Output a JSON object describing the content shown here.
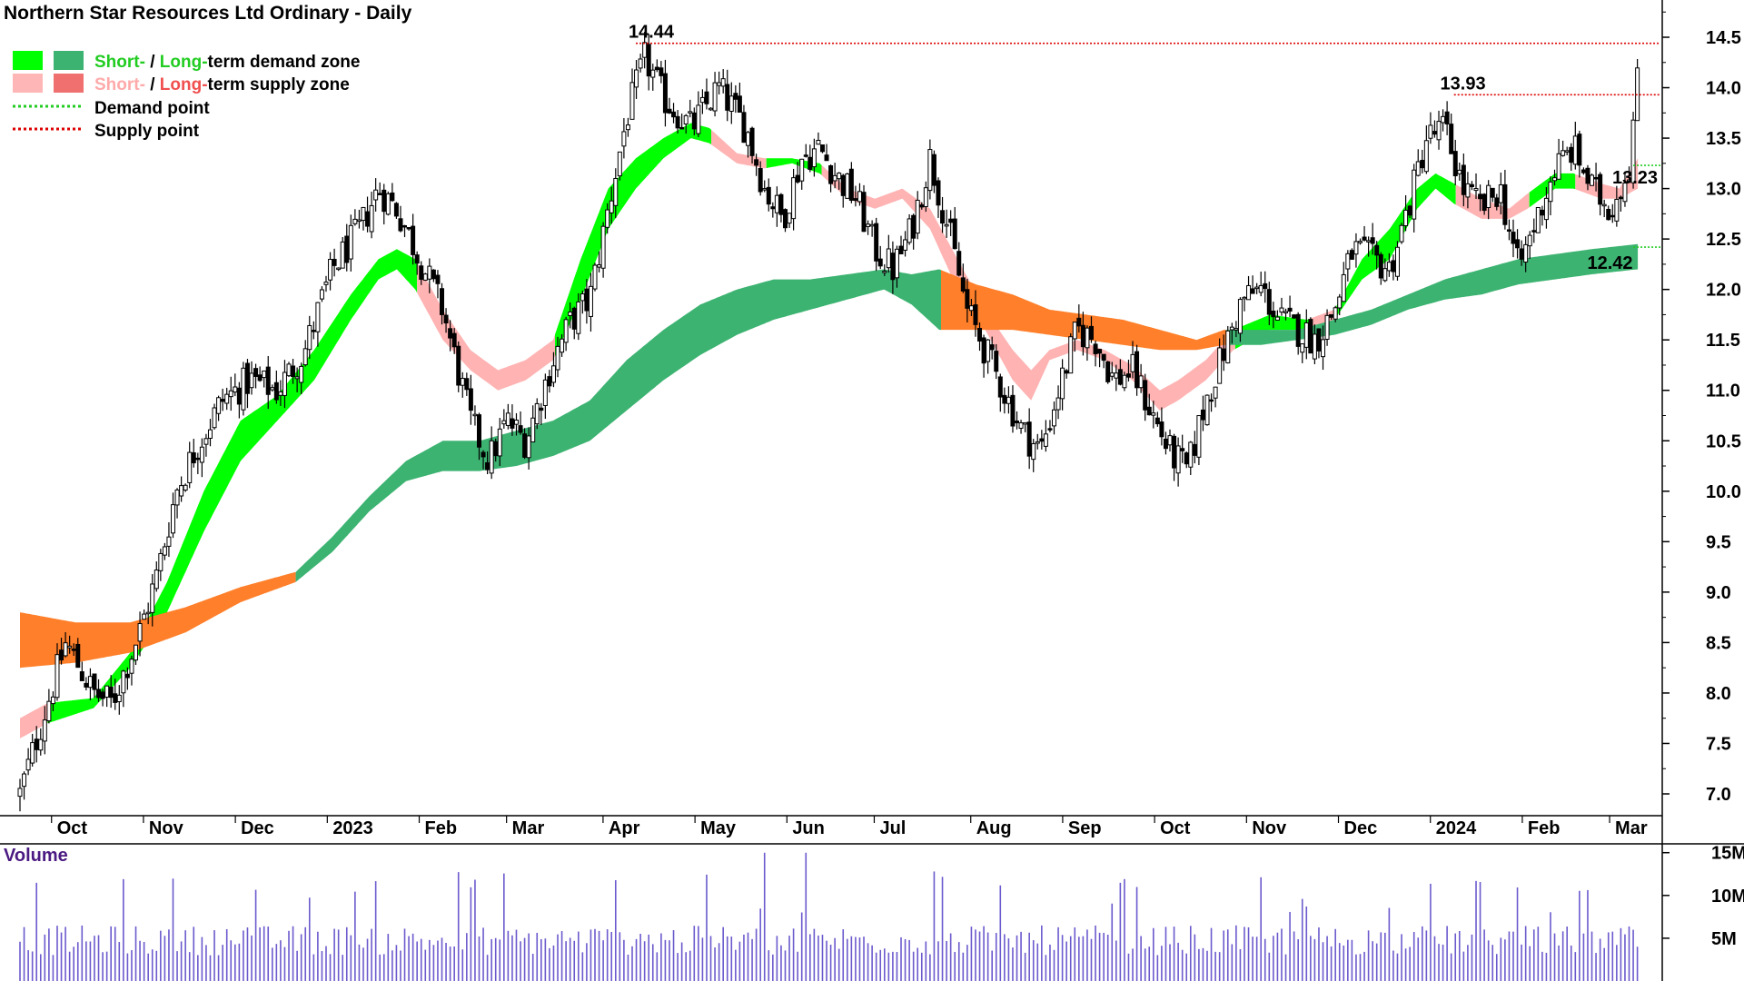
{
  "chart_data": {
    "type": "candlestick",
    "title": "Northern Star Resources Ltd Ordinary - Daily",
    "legend": [
      {
        "swatches": [
          "#00ff00",
          "#3cb371"
        ],
        "label_parts": [
          {
            "text": "Short-",
            "color": "#22cc22"
          },
          {
            "text": " / ",
            "color": "#000000"
          },
          {
            "text": "Long-",
            "color": "#22cc22"
          },
          {
            "text": "term demand zone",
            "color": "#000000"
          }
        ],
        "line": false
      },
      {
        "swatches": [
          "#ffb6b6",
          "#f07070"
        ],
        "label_parts": [
          {
            "text": "Short-",
            "color": "#ffaaaa"
          },
          {
            "text": " / ",
            "color": "#000000"
          },
          {
            "text": "Long-",
            "color": "#f05050"
          },
          {
            "text": "term supply zone",
            "color": "#000000"
          }
        ],
        "line": false
      },
      {
        "line_color": "#22cc22",
        "label_parts": [
          {
            "text": "Demand point",
            "color": "#000000"
          }
        ],
        "line": true
      },
      {
        "line_color": "#dd0000",
        "label_parts": [
          {
            "text": "Supply point",
            "color": "#000000"
          }
        ],
        "line": true
      }
    ],
    "y_axis": {
      "min": 6.8,
      "max": 14.8,
      "ticks": [
        "7.0",
        "7.5",
        "8.0",
        "8.5",
        "9.0",
        "9.5",
        "10.0",
        "10.5",
        "11.0",
        "11.5",
        "12.0",
        "12.5",
        "13.0",
        "13.5",
        "14.0",
        "14.5"
      ]
    },
    "x_axis": {
      "labels": [
        {
          "text": "Oct",
          "month_index": 0.6
        },
        {
          "text": "Nov",
          "month_index": 1.6
        },
        {
          "text": "Dec",
          "month_index": 2.6
        },
        {
          "text": "2023",
          "month_index": 3.6
        },
        {
          "text": "Feb",
          "month_index": 4.6
        },
        {
          "text": "Mar",
          "month_index": 5.55
        },
        {
          "text": "Apr",
          "month_index": 6.6
        },
        {
          "text": "May",
          "month_index": 7.6
        },
        {
          "text": "Jun",
          "month_index": 8.6
        },
        {
          "text": "Jul",
          "month_index": 9.55
        },
        {
          "text": "Aug",
          "month_index": 10.6
        },
        {
          "text": "Sep",
          "month_index": 11.6
        },
        {
          "text": "Oct",
          "month_index": 12.6
        },
        {
          "text": "Nov",
          "month_index": 13.6
        },
        {
          "text": "Dec",
          "month_index": 14.6
        },
        {
          "text": "2024",
          "month_index": 15.6
        },
        {
          "text": "Feb",
          "month_index": 16.6
        },
        {
          "text": "Mar",
          "month_index": 17.55
        }
      ]
    },
    "price_path": [
      [
        0.0,
        7.0
      ],
      [
        0.2,
        7.6
      ],
      [
        0.5,
        8.5
      ],
      [
        0.8,
        8.0
      ],
      [
        1.0,
        7.9
      ],
      [
        1.3,
        8.6
      ],
      [
        1.5,
        9.2
      ],
      [
        1.7,
        10.0
      ],
      [
        1.9,
        10.4
      ],
      [
        2.2,
        10.9
      ],
      [
        2.5,
        11.1
      ],
      [
        2.8,
        11.0
      ],
      [
        3.1,
        11.4
      ],
      [
        3.4,
        12.2
      ],
      [
        3.7,
        12.6
      ],
      [
        3.9,
        13.0
      ],
      [
        4.1,
        12.8
      ],
      [
        4.3,
        12.4
      ],
      [
        4.6,
        11.8
      ],
      [
        4.9,
        10.7
      ],
      [
        5.1,
        10.3
      ],
      [
        5.3,
        10.7
      ],
      [
        5.5,
        10.5
      ],
      [
        5.8,
        11.3
      ],
      [
        6.0,
        11.7
      ],
      [
        6.2,
        11.9
      ],
      [
        6.4,
        12.8
      ],
      [
        6.6,
        13.7
      ],
      [
        6.8,
        14.3
      ],
      [
        7.0,
        13.9
      ],
      [
        7.3,
        13.6
      ],
      [
        7.6,
        14.0
      ],
      [
        7.9,
        13.6
      ],
      [
        8.1,
        13.0
      ],
      [
        8.3,
        12.7
      ],
      [
        8.5,
        13.3
      ],
      [
        8.7,
        13.4
      ],
      [
        8.9,
        13.1
      ],
      [
        9.1,
        12.9
      ],
      [
        9.3,
        12.4
      ],
      [
        9.5,
        12.2
      ],
      [
        9.7,
        12.6
      ],
      [
        9.9,
        13.3
      ],
      [
        10.1,
        12.6
      ],
      [
        10.3,
        11.8
      ],
      [
        10.5,
        11.4
      ],
      [
        10.7,
        11.0
      ],
      [
        10.9,
        10.6
      ],
      [
        11.1,
        10.4
      ],
      [
        11.3,
        11.0
      ],
      [
        11.5,
        11.6
      ],
      [
        11.7,
        11.5
      ],
      [
        11.9,
        11.1
      ],
      [
        12.1,
        11.2
      ],
      [
        12.3,
        10.8
      ],
      [
        12.5,
        10.4
      ],
      [
        12.7,
        10.2
      ],
      [
        12.9,
        10.9
      ],
      [
        13.1,
        11.4
      ],
      [
        13.3,
        11.9
      ],
      [
        13.5,
        12.0
      ],
      [
        13.7,
        11.7
      ],
      [
        13.9,
        11.6
      ],
      [
        14.1,
        11.5
      ],
      [
        14.3,
        11.8
      ],
      [
        14.5,
        12.4
      ],
      [
        14.7,
        12.3
      ],
      [
        14.9,
        12.2
      ],
      [
        15.1,
        12.8
      ],
      [
        15.3,
        13.5
      ],
      [
        15.5,
        13.6
      ],
      [
        15.7,
        13.0
      ],
      [
        15.9,
        12.8
      ],
      [
        16.1,
        13.0
      ],
      [
        16.3,
        12.2
      ],
      [
        16.5,
        12.7
      ],
      [
        16.7,
        13.2
      ],
      [
        16.9,
        13.4
      ],
      [
        17.1,
        13.0
      ],
      [
        17.3,
        12.8
      ],
      [
        17.5,
        13.2
      ],
      [
        17.6,
        14.1
      ]
    ],
    "short_term_zone": [
      [
        0.0,
        7.55,
        7.75,
        "supply"
      ],
      [
        0.3,
        7.7,
        7.9,
        "demand"
      ],
      [
        0.8,
        7.85,
        7.95,
        "demand"
      ],
      [
        1.2,
        8.25,
        8.4,
        "demand"
      ],
      [
        1.6,
        8.8,
        9.1,
        "demand"
      ],
      [
        2.0,
        9.6,
        10.0,
        "demand"
      ],
      [
        2.4,
        10.3,
        10.7,
        "demand"
      ],
      [
        2.8,
        10.7,
        10.95,
        "demand"
      ],
      [
        3.2,
        11.1,
        11.4,
        "demand"
      ],
      [
        3.6,
        11.7,
        11.95,
        "demand"
      ],
      [
        3.9,
        12.1,
        12.3,
        "demand"
      ],
      [
        4.1,
        12.2,
        12.4,
        "demand"
      ],
      [
        4.3,
        12.0,
        12.3,
        "supply"
      ],
      [
        4.6,
        11.5,
        11.8,
        "supply"
      ],
      [
        4.9,
        11.2,
        11.4,
        "supply"
      ],
      [
        5.2,
        11.0,
        11.2,
        "supply"
      ],
      [
        5.5,
        11.1,
        11.3,
        "supply"
      ],
      [
        5.8,
        11.3,
        11.5,
        "demand"
      ],
      [
        6.1,
        11.9,
        12.3,
        "demand"
      ],
      [
        6.4,
        12.6,
        13.0,
        "demand"
      ],
      [
        6.7,
        13.0,
        13.3,
        "demand"
      ],
      [
        7.0,
        13.3,
        13.5,
        "demand"
      ],
      [
        7.3,
        13.5,
        13.65,
        "demand"
      ],
      [
        7.5,
        13.45,
        13.6,
        "supply"
      ],
      [
        7.8,
        13.25,
        13.35,
        "supply"
      ],
      [
        8.1,
        13.2,
        13.3,
        "demand"
      ],
      [
        8.4,
        13.25,
        13.3,
        "demand"
      ],
      [
        8.7,
        13.15,
        13.25,
        "supply"
      ],
      [
        9.0,
        12.9,
        13.0,
        "supply"
      ],
      [
        9.3,
        12.8,
        12.9,
        "supply"
      ],
      [
        9.6,
        12.9,
        13.0,
        "supply"
      ],
      [
        9.9,
        12.6,
        12.8,
        "supply"
      ],
      [
        10.2,
        12.0,
        12.3,
        "supply"
      ],
      [
        10.5,
        11.6,
        11.8,
        "supply"
      ],
      [
        10.8,
        11.1,
        11.4,
        "supply"
      ],
      [
        11.0,
        10.9,
        11.2,
        "supply"
      ],
      [
        11.2,
        11.3,
        11.4,
        "supply"
      ],
      [
        11.5,
        11.4,
        11.5,
        "supply"
      ],
      [
        11.8,
        11.3,
        11.4,
        "supply"
      ],
      [
        12.1,
        11.1,
        11.25,
        "supply"
      ],
      [
        12.4,
        10.8,
        11.0,
        "supply"
      ],
      [
        12.6,
        10.9,
        11.1,
        "supply"
      ],
      [
        12.9,
        11.1,
        11.3,
        "supply"
      ],
      [
        13.2,
        11.4,
        11.6,
        "demand"
      ],
      [
        13.6,
        11.6,
        11.75,
        "demand"
      ],
      [
        14.0,
        11.6,
        11.7,
        "supply"
      ],
      [
        14.3,
        11.7,
        11.8,
        "demand"
      ],
      [
        14.6,
        12.1,
        12.3,
        "demand"
      ],
      [
        14.9,
        12.3,
        12.6,
        "demand"
      ],
      [
        15.2,
        12.8,
        13.0,
        "demand"
      ],
      [
        15.4,
        13.0,
        13.15,
        "demand"
      ],
      [
        15.6,
        12.85,
        13.05,
        "supply"
      ],
      [
        15.9,
        12.7,
        12.9,
        "supply"
      ],
      [
        16.2,
        12.7,
        12.8,
        "supply"
      ],
      [
        16.4,
        12.8,
        12.95,
        "demand"
      ],
      [
        16.7,
        13.0,
        13.15,
        "demand"
      ],
      [
        16.9,
        13.0,
        13.15,
        "supply"
      ],
      [
        17.2,
        12.9,
        13.05,
        "supply"
      ],
      [
        17.4,
        12.9,
        13.0,
        "supply"
      ],
      [
        17.6,
        13.0,
        13.3,
        "supply"
      ]
    ],
    "long_term_zone": [
      [
        0.0,
        8.25,
        8.8,
        "supply"
      ],
      [
        0.6,
        8.3,
        8.7,
        "supply"
      ],
      [
        1.2,
        8.4,
        8.7,
        "supply"
      ],
      [
        1.8,
        8.6,
        8.85,
        "supply"
      ],
      [
        2.4,
        8.9,
        9.05,
        "supply"
      ],
      [
        3.0,
        9.1,
        9.2,
        "demand"
      ],
      [
        3.4,
        9.4,
        9.55,
        "demand"
      ],
      [
        3.8,
        9.8,
        9.95,
        "demand"
      ],
      [
        4.2,
        10.1,
        10.3,
        "demand"
      ],
      [
        4.6,
        10.2,
        10.5,
        "demand"
      ],
      [
        5.0,
        10.2,
        10.5,
        "demand"
      ],
      [
        5.4,
        10.25,
        10.6,
        "demand"
      ],
      [
        5.8,
        10.35,
        10.7,
        "demand"
      ],
      [
        6.2,
        10.5,
        10.9,
        "demand"
      ],
      [
        6.6,
        10.8,
        11.3,
        "demand"
      ],
      [
        7.0,
        11.1,
        11.6,
        "demand"
      ],
      [
        7.4,
        11.35,
        11.85,
        "demand"
      ],
      [
        7.8,
        11.55,
        12.0,
        "demand"
      ],
      [
        8.2,
        11.7,
        12.1,
        "demand"
      ],
      [
        8.6,
        11.8,
        12.1,
        "demand"
      ],
      [
        9.0,
        11.9,
        12.15,
        "demand"
      ],
      [
        9.4,
        12.0,
        12.2,
        "demand"
      ],
      [
        9.7,
        11.85,
        12.15,
        "demand"
      ],
      [
        10.0,
        11.6,
        12.2,
        "supply"
      ],
      [
        10.4,
        11.6,
        12.05,
        "supply"
      ],
      [
        10.8,
        11.6,
        11.95,
        "supply"
      ],
      [
        11.2,
        11.55,
        11.8,
        "supply"
      ],
      [
        11.6,
        11.5,
        11.75,
        "supply"
      ],
      [
        12.0,
        11.45,
        11.7,
        "supply"
      ],
      [
        12.4,
        11.4,
        11.6,
        "supply"
      ],
      [
        12.8,
        11.4,
        11.5,
        "supply"
      ],
      [
        13.1,
        11.45,
        11.6,
        "demand"
      ],
      [
        13.5,
        11.45,
        11.6,
        "demand"
      ],
      [
        13.9,
        11.5,
        11.6,
        "demand"
      ],
      [
        14.3,
        11.55,
        11.7,
        "demand"
      ],
      [
        14.7,
        11.65,
        11.8,
        "demand"
      ],
      [
        15.1,
        11.8,
        11.95,
        "demand"
      ],
      [
        15.5,
        11.9,
        12.1,
        "demand"
      ],
      [
        15.9,
        11.95,
        12.2,
        "demand"
      ],
      [
        16.3,
        12.05,
        12.3,
        "demand"
      ],
      [
        16.7,
        12.1,
        12.35,
        "demand"
      ],
      [
        17.1,
        12.15,
        12.4,
        "demand"
      ],
      [
        17.6,
        12.2,
        12.45,
        "demand"
      ]
    ],
    "annotations": [
      {
        "text": "14.44",
        "value": 14.44,
        "month_index": 6.62,
        "kind": "supply",
        "line_from": 6.7
      },
      {
        "text": "13.93",
        "value": 13.93,
        "month_index": 15.45,
        "kind": "supply",
        "line_from": 15.6
      },
      {
        "text": "13.23",
        "value": 13.23,
        "month_index": 17.7,
        "kind": "demand",
        "line_from": 17.55
      },
      {
        "text": "12.42",
        "value": 12.42,
        "month_index": 17.05,
        "kind": "demand",
        "line_from": 17.55
      }
    ],
    "volume": {
      "label": "Volume",
      "ticks": [
        "5M",
        "10M",
        "15M"
      ],
      "max": 15.5,
      "color": "#6a5acd"
    }
  }
}
